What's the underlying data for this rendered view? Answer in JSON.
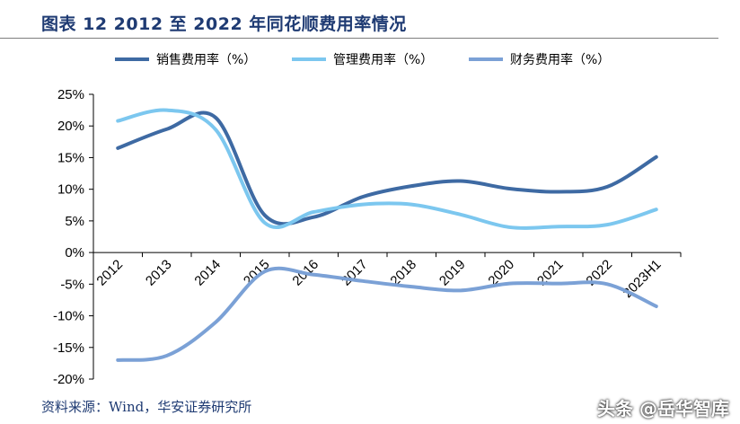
{
  "figure": {
    "title": "图表 12 2012 至 2022 年同花顺费用率情况",
    "source": "资料来源：Wind，华安证券研究所",
    "watermark": "头条 @岳华智库"
  },
  "chart_data": {
    "type": "line",
    "categories": [
      "2012",
      "2013",
      "2014",
      "2015",
      "2016",
      "2017",
      "2018",
      "2019",
      "2020",
      "2021",
      "2022",
      "2023H1"
    ],
    "series": [
      {
        "name": "销售费用率（%）",
        "color": "#3e6aa3",
        "values": [
          16.5,
          19.5,
          21.3,
          5.9,
          5.6,
          8.8,
          10.5,
          11.3,
          10.1,
          9.6,
          10.4,
          15.1
        ]
      },
      {
        "name": "管理费用率（%）",
        "color": "#7cc7ef",
        "values": [
          20.8,
          22.5,
          19.4,
          4.7,
          6.4,
          7.6,
          7.6,
          6.0,
          4.0,
          4.1,
          4.4,
          6.8
        ]
      },
      {
        "name": "财务费用率（%）",
        "color": "#7ba1d6",
        "values": [
          -17.0,
          -16.3,
          -11.0,
          -3.0,
          -3.5,
          -4.5,
          -5.4,
          -6.0,
          -4.9,
          -4.9,
          -5.0,
          -8.5
        ]
      }
    ],
    "yticks": [
      "25%",
      "20%",
      "15%",
      "10%",
      "5%",
      "0%",
      "-5%",
      "-10%",
      "-15%",
      "-20%"
    ],
    "ylim": [
      -20,
      25
    ],
    "xlabel": "",
    "ylabel": "",
    "legend": "top"
  }
}
